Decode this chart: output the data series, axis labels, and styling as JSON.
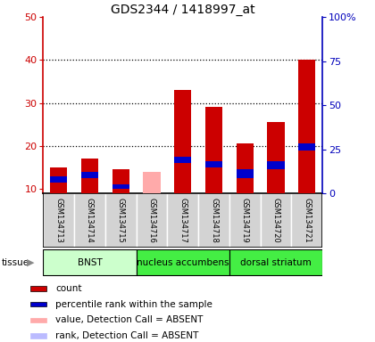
{
  "title": "GDS2344 / 1418997_at",
  "samples": [
    "GSM134713",
    "GSM134714",
    "GSM134715",
    "GSM134716",
    "GSM134717",
    "GSM134718",
    "GSM134719",
    "GSM134720",
    "GSM134721"
  ],
  "count_values": [
    15,
    17,
    14.5,
    0,
    33,
    29,
    20.5,
    25.5,
    40
  ],
  "rank_values": [
    11.5,
    12.5,
    10,
    0,
    16,
    15,
    12.5,
    14.5,
    19
  ],
  "blue_rank_bar_height": [
    1.5,
    1.5,
    1.0,
    0,
    1.5,
    1.5,
    2.0,
    2.0,
    1.5
  ],
  "absent_count": [
    0,
    0,
    0,
    14,
    0,
    0,
    0,
    0,
    0
  ],
  "absent_detection": [
    false,
    false,
    false,
    true,
    false,
    false,
    false,
    false,
    false
  ],
  "tissue_groups": [
    {
      "label": "BNST",
      "start": 0,
      "end": 3,
      "color": "#ccffcc"
    },
    {
      "label": "nucleus accumbens",
      "start": 3,
      "end": 6,
      "color": "#44ee44"
    },
    {
      "label": "dorsal striatum",
      "start": 6,
      "end": 9,
      "color": "#44ee44"
    }
  ],
  "ylim_left": [
    9,
    50
  ],
  "ylim_right": [
    0,
    100
  ],
  "yticks_left": [
    10,
    20,
    30,
    40,
    50
  ],
  "yticks_right": [
    0,
    25,
    50,
    75,
    100
  ],
  "bar_width": 0.55,
  "count_color": "#cc0000",
  "rank_color": "#0000cc",
  "absent_count_color": "#ffaaaa",
  "absent_rank_color": "#bbbbff",
  "left_axis_color": "#cc0000",
  "right_axis_color": "#0000bb",
  "legend_entries": [
    "count",
    "percentile rank within the sample",
    "value, Detection Call = ABSENT",
    "rank, Detection Call = ABSENT"
  ],
  "legend_colors": [
    "#cc0000",
    "#0000cc",
    "#ffaaaa",
    "#bbbbff"
  ]
}
